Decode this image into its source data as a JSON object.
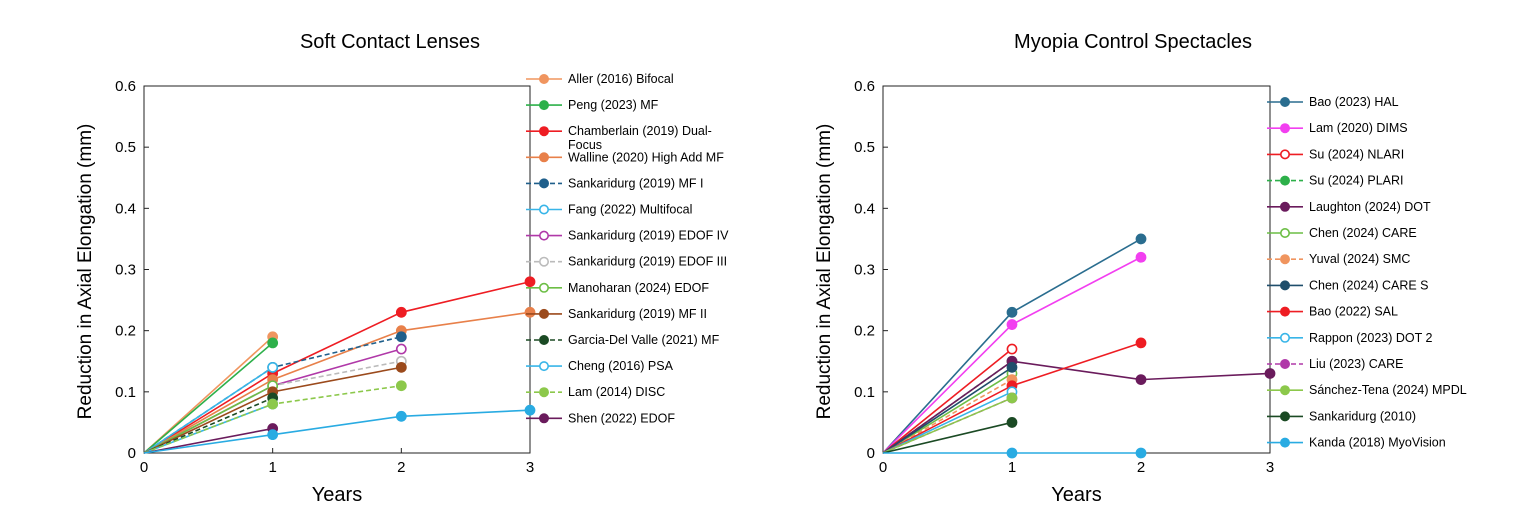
{
  "chart_data": [
    {
      "type": "line",
      "title": "Soft Contact Lenses",
      "xlabel": "Years",
      "ylabel": "Reduction in Axial Elongation (mm)",
      "xlim": [
        0,
        3
      ],
      "ylim": [
        0,
        0.6
      ],
      "xticks": [
        "0",
        "1",
        "2",
        "3"
      ],
      "yticks": [
        "0",
        "0.1",
        "0.2",
        "0.3",
        "0.4",
        "0.5",
        "0.6"
      ],
      "grid": false,
      "legend": "right",
      "series": [
        {
          "name": "Aller (2016) Bifocal",
          "color": "#F0955F",
          "dash": false,
          "hollow": false,
          "x": [
            0,
            1
          ],
          "y": [
            0,
            0.19
          ]
        },
        {
          "name": "Peng (2023) MF",
          "color": "#2DB04A",
          "dash": false,
          "hollow": false,
          "x": [
            0,
            1
          ],
          "y": [
            0,
            0.18
          ]
        },
        {
          "name": "Chamberlain (2019) Dual-Focus",
          "color": "#EE1D23",
          "dash": false,
          "hollow": false,
          "x": [
            0,
            1,
            2,
            3
          ],
          "y": [
            0,
            0.13,
            0.23,
            0.28
          ]
        },
        {
          "name": "Walline (2020) High Add MF",
          "color": "#E8804A",
          "dash": false,
          "hollow": false,
          "x": [
            0,
            1,
            2,
            3
          ],
          "y": [
            0,
            0.12,
            0.2,
            0.23
          ]
        },
        {
          "name": "Sankaridurg (2019) MF I",
          "color": "#1F5F8B",
          "dash": true,
          "hollow": false,
          "x": [
            0,
            1,
            2
          ],
          "y": [
            0,
            0.14,
            0.19
          ]
        },
        {
          "name": "Fang (2022) Multifocal",
          "color": "#38B5E8",
          "dash": false,
          "hollow": true,
          "x": [
            0,
            1
          ],
          "y": [
            0,
            0.14
          ]
        },
        {
          "name": "Sankaridurg (2019) EDOF IV",
          "color": "#B038A8",
          "dash": false,
          "hollow": true,
          "x": [
            0,
            1,
            2
          ],
          "y": [
            0,
            0.11,
            0.17
          ]
        },
        {
          "name": "Sankaridurg (2019) EDOF III",
          "color": "#BBBBBB",
          "dash": true,
          "hollow": true,
          "x": [
            0,
            1,
            2
          ],
          "y": [
            0,
            0.11,
            0.15
          ]
        },
        {
          "name": "Manoharan (2024) EDOF",
          "color": "#6CBE45",
          "dash": false,
          "hollow": true,
          "x": [
            0,
            1
          ],
          "y": [
            0,
            0.11
          ]
        },
        {
          "name": "Sankaridurg (2019) MF II",
          "color": "#9B4A1C",
          "dash": false,
          "hollow": false,
          "x": [
            0,
            1,
            2
          ],
          "y": [
            0,
            0.1,
            0.14
          ]
        },
        {
          "name": "Garcia-Del Valle (2021) MF",
          "color": "#1B4A24",
          "dash": true,
          "hollow": false,
          "x": [
            0,
            1
          ],
          "y": [
            0,
            0.09
          ]
        },
        {
          "name": "Cheng (2016) PSA",
          "color": "#38B5E8",
          "dash": false,
          "hollow": true,
          "x": [
            0,
            1
          ],
          "y": [
            0,
            0.08
          ]
        },
        {
          "name": "Lam (2014) DISC",
          "color": "#8CC84B",
          "dash": true,
          "hollow": false,
          "x": [
            0,
            1,
            2
          ],
          "y": [
            0,
            0.08,
            0.11
          ]
        },
        {
          "name": "Shen (2022) EDOF",
          "color": "#6A1B5C",
          "dash": false,
          "hollow": false,
          "x": [
            0,
            1
          ],
          "y": [
            0,
            0.04
          ]
        },
        {
          "name": "",
          "color": "#29ABE2",
          "dash": false,
          "hollow": false,
          "x": [
            0,
            1,
            2,
            3
          ],
          "y": [
            0,
            0.03,
            0.06,
            0.07
          ]
        }
      ]
    },
    {
      "type": "line",
      "title": "Myopia Control Spectacles",
      "xlabel": "Years",
      "ylabel": "Reduction in Axial Elongation (mm)",
      "xlim": [
        0,
        3
      ],
      "ylim": [
        0,
        0.6
      ],
      "xticks": [
        "0",
        "1",
        "2",
        "3"
      ],
      "yticks": [
        "0",
        "0.1",
        "0.2",
        "0.3",
        "0.4",
        "0.5",
        "0.6"
      ],
      "grid": false,
      "legend": "right",
      "series": [
        {
          "name": "Bao (2023) HAL",
          "color": "#2A6D8F",
          "dash": false,
          "hollow": false,
          "x": [
            0,
            1,
            2
          ],
          "y": [
            0,
            0.23,
            0.35
          ]
        },
        {
          "name": "Lam (2020) DIMS",
          "color": "#F23FF0",
          "dash": false,
          "hollow": false,
          "x": [
            0,
            1,
            2
          ],
          "y": [
            0,
            0.21,
            0.32
          ]
        },
        {
          "name": "Su (2024) NLARI",
          "color": "#EE1D23",
          "dash": false,
          "hollow": true,
          "x": [
            0,
            1
          ],
          "y": [
            0,
            0.17
          ]
        },
        {
          "name": "Su (2024) PLARI",
          "color": "#2DB04A",
          "dash": true,
          "hollow": false,
          "x": [
            0,
            1
          ],
          "y": [
            0,
            0.15
          ]
        },
        {
          "name": "Laughton (2024) DOT",
          "color": "#6A1B5C",
          "dash": false,
          "hollow": false,
          "x": [
            0,
            1,
            2,
            3
          ],
          "y": [
            0,
            0.15,
            0.12,
            0.13
          ]
        },
        {
          "name": "Chen (2024) CARE",
          "color": "#6CBE45",
          "dash": false,
          "hollow": true,
          "x": [
            0,
            1
          ],
          "y": [
            0,
            0.13
          ]
        },
        {
          "name": "Yuval (2024) SMC",
          "color": "#F0955F",
          "dash": true,
          "hollow": false,
          "x": [
            0,
            1
          ],
          "y": [
            0,
            0.12
          ]
        },
        {
          "name": "Chen (2024) CARE S",
          "color": "#1F4E6B",
          "dash": false,
          "hollow": false,
          "x": [
            0,
            1
          ],
          "y": [
            0,
            0.14
          ]
        },
        {
          "name": "Bao (2022) SAL",
          "color": "#EE1D23",
          "dash": false,
          "hollow": false,
          "x": [
            0,
            1,
            2
          ],
          "y": [
            0,
            0.11,
            0.18
          ]
        },
        {
          "name": "Rappon (2023) DOT 2",
          "color": "#38B5E8",
          "dash": false,
          "hollow": true,
          "x": [
            0,
            1
          ],
          "y": [
            0,
            0.1
          ]
        },
        {
          "name": "Liu (2023) CARE",
          "color": "#B038A8",
          "dash": true,
          "hollow": false,
          "x": [
            0,
            1
          ],
          "y": [
            0,
            0.09
          ]
        },
        {
          "name": "Sánchez-Tena (2024) MPDL",
          "color": "#8CC84B",
          "dash": false,
          "hollow": false,
          "x": [
            0,
            1
          ],
          "y": [
            0,
            0.09
          ]
        },
        {
          "name": "Sankaridurg (2010)",
          "color": "#1B4A24",
          "dash": false,
          "hollow": false,
          "x": [
            0,
            1
          ],
          "y": [
            0,
            0.05
          ]
        },
        {
          "name": "Kanda (2018) MyoVision",
          "color": "#29ABE2",
          "dash": false,
          "hollow": false,
          "x": [
            0,
            1,
            2
          ],
          "y": [
            0,
            0,
            0
          ]
        }
      ]
    }
  ]
}
